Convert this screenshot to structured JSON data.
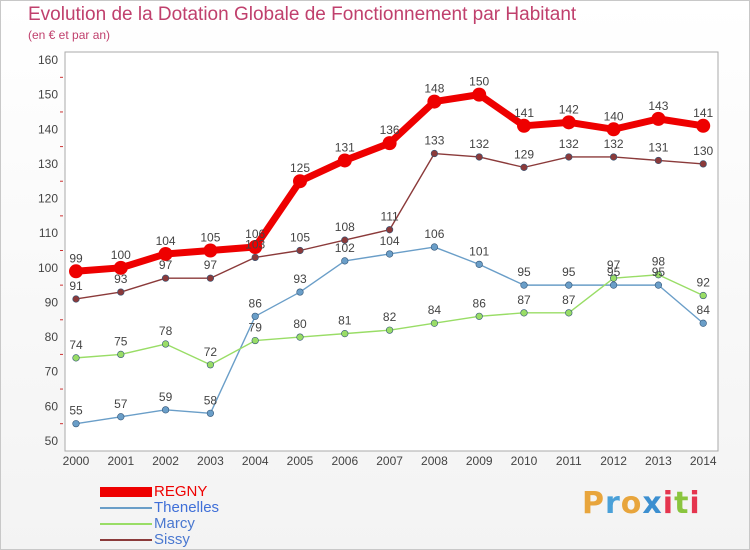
{
  "title": "Evolution de la Dotation Globale de Fonctionnement par Habitant",
  "subtitle": "(en € et par an)",
  "logo": {
    "letters": [
      "P",
      "r",
      "o",
      "x",
      "i",
      "t",
      "i"
    ],
    "colors": [
      "#e8a53c",
      "#4aa0d8",
      "#e8a53c",
      "#3c8fd0",
      "#e5354e",
      "#8ac53e",
      "#e5354e"
    ]
  },
  "chart_data": {
    "type": "line",
    "x": [
      2000,
      2001,
      2002,
      2003,
      2004,
      2005,
      2006,
      2007,
      2008,
      2009,
      2010,
      2011,
      2012,
      2013,
      2014
    ],
    "ylim": [
      50,
      160
    ],
    "yticks": [
      50,
      60,
      70,
      80,
      90,
      100,
      110,
      120,
      130,
      140,
      150,
      160
    ],
    "grid": false,
    "legend_position": "bottom-left",
    "series": [
      {
        "name": "REGNY",
        "color": "#ee0000",
        "values": [
          99,
          100,
          104,
          105,
          106,
          125,
          131,
          136,
          148,
          150,
          141,
          142,
          140,
          143,
          141
        ],
        "labels": [
          "99",
          "100",
          "104",
          "105",
          "106",
          "125",
          "131",
          "136",
          "148",
          "150",
          "141",
          "142",
          "140",
          "143",
          "141"
        ]
      },
      {
        "name": "Thenelles",
        "color": "#6a9ec8",
        "values": [
          55,
          57,
          59,
          58,
          86,
          93,
          102,
          104,
          106,
          101,
          95,
          95,
          95,
          95,
          84
        ],
        "labels": [
          "55",
          "57",
          "59",
          "58",
          "86",
          "93",
          "102",
          "104",
          "106",
          "101",
          "95",
          "95",
          "95",
          "95",
          "84"
        ]
      },
      {
        "name": "Marcy",
        "color": "#99dd66",
        "values": [
          74,
          75,
          78,
          72,
          79,
          80,
          81,
          82,
          84,
          86,
          87,
          87,
          97,
          98,
          92
        ],
        "labels": [
          "74",
          "75",
          "78",
          "72",
          "79",
          "80",
          "81",
          "82",
          "84",
          "86",
          "87",
          "87",
          "97",
          "98",
          "92"
        ]
      },
      {
        "name": "Sissy",
        "color": "#8b3a3a",
        "values": [
          91,
          93,
          97,
          97,
          103,
          105,
          108,
          111,
          133,
          132,
          129,
          132,
          132,
          131,
          130
        ],
        "labels": [
          "91",
          "93",
          "97",
          "97",
          "103",
          "105",
          "108",
          "111",
          "133",
          "132",
          "129",
          "132",
          "132",
          "131",
          "130"
        ]
      }
    ]
  }
}
